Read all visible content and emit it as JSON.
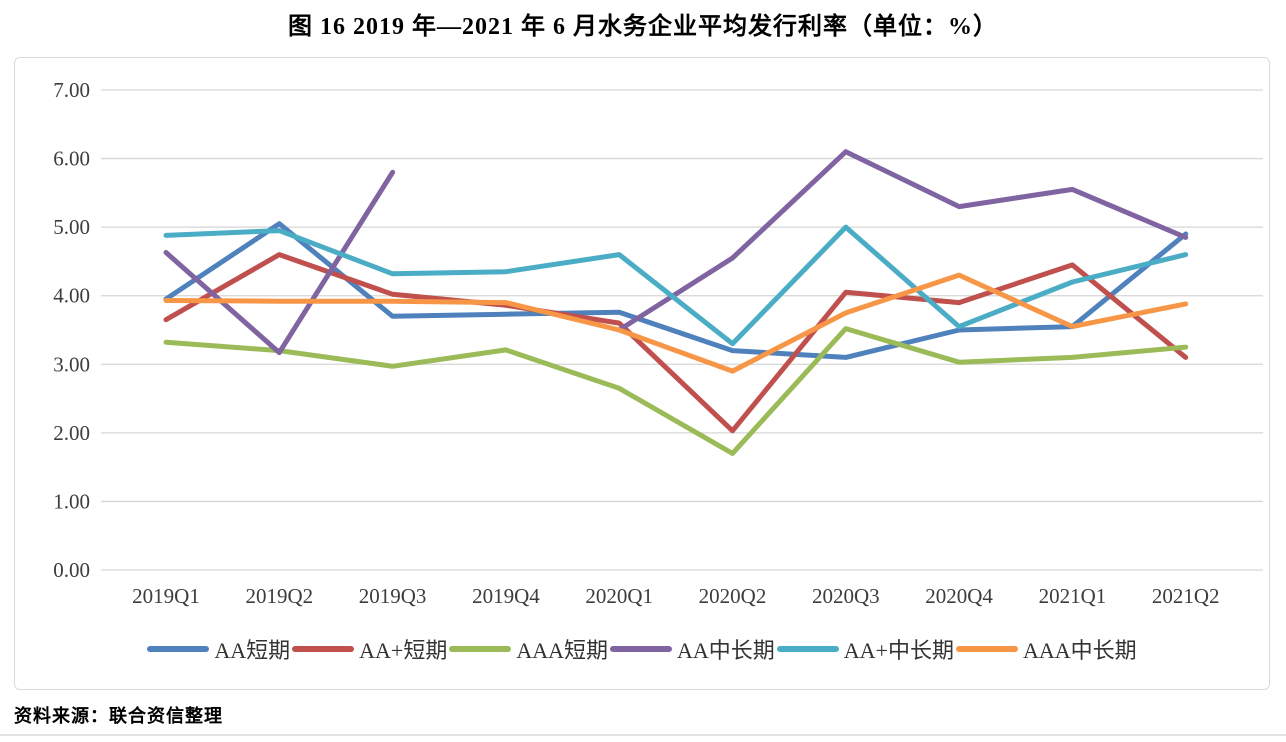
{
  "page": {
    "source_note": "资料来源：联合资信整理"
  },
  "chart_data": {
    "type": "line",
    "title": "图 16  2019 年—2021 年 6 月水务企业平均发行利率（单位：%）",
    "xlabel": "",
    "ylabel": "",
    "unit": "%",
    "categories": [
      "2019Q1",
      "2019Q2",
      "2019Q3",
      "2019Q4",
      "2020Q1",
      "2020Q2",
      "2020Q3",
      "2020Q4",
      "2021Q1",
      "2021Q2"
    ],
    "series": [
      {
        "name": "AA短期",
        "color": "#4F81BD",
        "values": [
          3.95,
          5.05,
          3.7,
          3.73,
          3.76,
          3.2,
          3.1,
          3.5,
          3.55,
          4.9
        ]
      },
      {
        "name": "AA+短期",
        "color": "#C0504D",
        "values": [
          3.65,
          4.6,
          4.02,
          3.86,
          3.6,
          2.03,
          4.05,
          3.9,
          4.45,
          3.1
        ]
      },
      {
        "name": "AAA短期",
        "color": "#9BBB59",
        "values": [
          3.32,
          3.2,
          2.97,
          3.21,
          2.65,
          1.7,
          3.52,
          3.03,
          3.1,
          3.25
        ]
      },
      {
        "name": "AA中长期",
        "color": "#8064A2",
        "values": [
          4.63,
          3.17,
          5.8,
          null,
          3.5,
          4.55,
          6.1,
          5.3,
          5.55,
          4.85
        ]
      },
      {
        "name": "AA+中长期",
        "color": "#4BACC6",
        "values": [
          4.88,
          4.95,
          4.32,
          4.35,
          4.6,
          3.3,
          5.0,
          3.55,
          4.2,
          4.6
        ]
      },
      {
        "name": "AAA中长期",
        "color": "#F79646",
        "values": [
          3.93,
          3.92,
          3.92,
          3.9,
          3.5,
          2.9,
          3.75,
          4.3,
          3.55,
          3.88
        ]
      }
    ],
    "ylim": [
      0,
      7
    ],
    "ytick_labels": [
      "0.00",
      "1.00",
      "2.00",
      "3.00",
      "4.00",
      "5.00",
      "6.00",
      "7.00"
    ],
    "grid": true,
    "gridline_color": "#d6d6d6",
    "tick_text_color": "#3d3d3d",
    "legend_position": "bottom"
  }
}
